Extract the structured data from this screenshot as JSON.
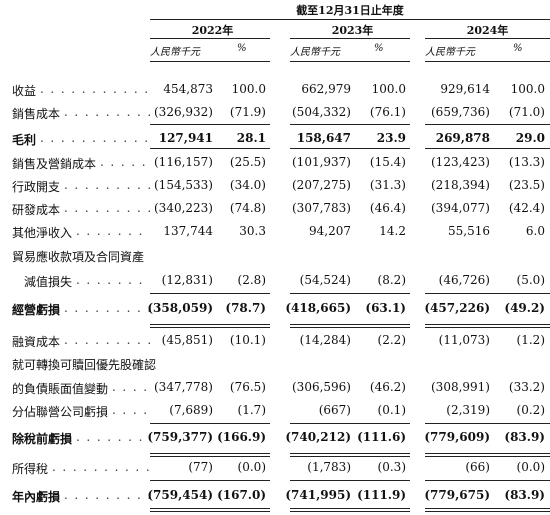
{
  "header": {
    "period_title": "截至12月31日止年度",
    "years": [
      "2022年",
      "2023年",
      "2024年"
    ],
    "unit_amount": "人民幣千元",
    "unit_pct": "%"
  },
  "rows": [
    {
      "label": "收益",
      "dots": true,
      "bold": false,
      "values": [
        "454,873",
        "100.0",
        "662,979",
        "100.0",
        "929,614",
        "100.0"
      ]
    },
    {
      "label": "銷售成本",
      "dots": true,
      "bold": false,
      "values": [
        "(326,932)",
        "(71.9)",
        "(504,332)",
        "(76.1)",
        "(659,736)",
        "(71.0)"
      ]
    },
    {
      "label": "毛利",
      "dots": true,
      "bold": true,
      "values": [
        "127,941",
        "28.1",
        "158,647",
        "23.9",
        "269,878",
        "29.0"
      ]
    },
    {
      "label": "銷售及營銷成本",
      "dots": true,
      "bold": false,
      "values": [
        "(116,157)",
        "(25.5)",
        "(101,937)",
        "(15.4)",
        "(123,423)",
        "(13.3)"
      ]
    },
    {
      "label": "行政開支",
      "dots": true,
      "bold": false,
      "values": [
        "(154,533)",
        "(34.0)",
        "(207,275)",
        "(31.3)",
        "(218,394)",
        "(23.5)"
      ]
    },
    {
      "label": "研發成本",
      "dots": true,
      "bold": false,
      "values": [
        "(340,223)",
        "(74.8)",
        "(307,783)",
        "(46.4)",
        "(394,077)",
        "(42.4)"
      ]
    },
    {
      "label": "其他淨收入",
      "dots": true,
      "bold": false,
      "values": [
        "137,744",
        "30.3",
        "94,207",
        "14.2",
        "55,516",
        "6.0"
      ]
    },
    {
      "label": "貿易應收款項及合同資產",
      "dots": false,
      "bold": false,
      "values": [
        "",
        "",
        "",
        "",
        "",
        ""
      ]
    },
    {
      "label": "減值損失",
      "dots": true,
      "bold": false,
      "indent": true,
      "values": [
        "(12,831)",
        "(2.8)",
        "(54,524)",
        "(8.2)",
        "(46,726)",
        "(5.0)"
      ]
    },
    {
      "label": "經營虧損",
      "dots": true,
      "bold": true,
      "values": [
        "(358,059)",
        "(78.7)",
        "(418,665)",
        "(63.1)",
        "(457,226)",
        "(49.2)"
      ]
    },
    {
      "label": "融資成本",
      "dots": true,
      "bold": false,
      "values": [
        "(45,851)",
        "(10.1)",
        "(14,284)",
        "(2.2)",
        "(11,073)",
        "(1.2)"
      ]
    },
    {
      "label": "就可轉換可贖回優先股確認",
      "dots": false,
      "bold": false,
      "values": [
        "",
        "",
        "",
        "",
        "",
        ""
      ]
    },
    {
      "label": "的負債賬面值變動",
      "dots": true,
      "bold": false,
      "values": [
        "(347,778)",
        "(76.5)",
        "(306,596)",
        "(46.2)",
        "(308,991)",
        "(33.2)"
      ]
    },
    {
      "label": "分佔聯營公司虧損",
      "dots": true,
      "bold": false,
      "values": [
        "(7,689)",
        "(1.7)",
        "(667)",
        "(0.1)",
        "(2,319)",
        "(0.2)"
      ]
    },
    {
      "label": "除稅前虧損",
      "dots": true,
      "bold": true,
      "values": [
        "(759,377)",
        "(166.9)",
        "(740,212)",
        "(111.6)",
        "(779,609)",
        "(83.9)"
      ]
    },
    {
      "label": "所得稅",
      "dots": true,
      "bold": false,
      "values": [
        "(77)",
        "(0.0)",
        "(1,783)",
        "(0.3)",
        "(66)",
        "(0.0)"
      ]
    },
    {
      "label": "年內虧損",
      "dots": true,
      "bold": true,
      "values": [
        "(759,454)",
        "(167.0)",
        "(741,995)",
        "(111.9)",
        "(779,675)",
        "(83.9)"
      ]
    }
  ]
}
